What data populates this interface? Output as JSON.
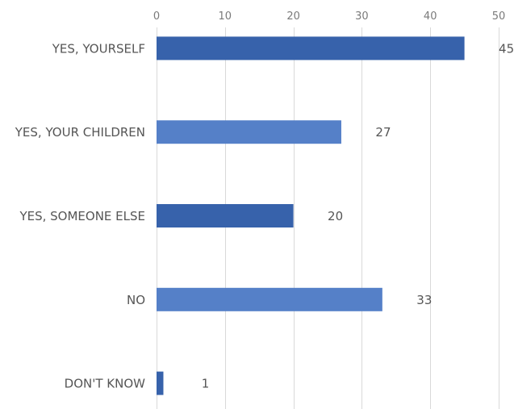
{
  "chart_data": {
    "type": "bar",
    "orientation": "horizontal",
    "categories": [
      "YES, YOURSELF",
      "YES, YOUR CHILDREN",
      "YES, SOMEONE ELSE",
      "NO",
      "DON'T KNOW"
    ],
    "values": [
      45,
      27,
      20,
      33,
      1
    ],
    "value_labels": [
      "45",
      "27",
      "20",
      "33",
      "1"
    ],
    "xlim": [
      0,
      50
    ],
    "xticks": [
      "0",
      "10",
      "20",
      "30",
      "40",
      "50"
    ],
    "title": "",
    "xlabel": "",
    "ylabel": "",
    "grid": "vertical",
    "axis_position": "top",
    "colors": [
      "#3762ab",
      "#5580c8",
      "#3762ab",
      "#5580c8",
      "#3762ab"
    ]
  }
}
